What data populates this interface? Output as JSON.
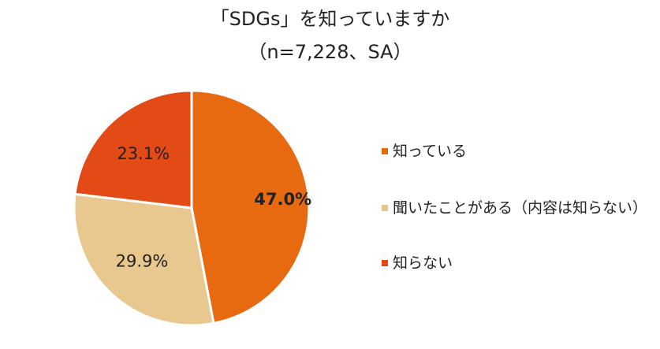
{
  "chart_data": {
    "type": "pie",
    "title": "「SDGs」を知っていますか",
    "subtitle": "（n=7,228、SA）",
    "slices": [
      {
        "name": "知っている",
        "value": 47.0,
        "label": "47.0%",
        "color": "#E86A10",
        "label_bold": true
      },
      {
        "name": "聞いたことがある（内容は知らない）",
        "value": 29.9,
        "label": "29.9%",
        "color": "#E8C88F",
        "label_bold": false
      },
      {
        "name": "知らない",
        "value": 23.1,
        "label": "23.1%",
        "color": "#E24A16",
        "label_bold": false
      }
    ],
    "start_angle": "12 o'clock",
    "direction": "clockwise",
    "legend_position": "right"
  }
}
